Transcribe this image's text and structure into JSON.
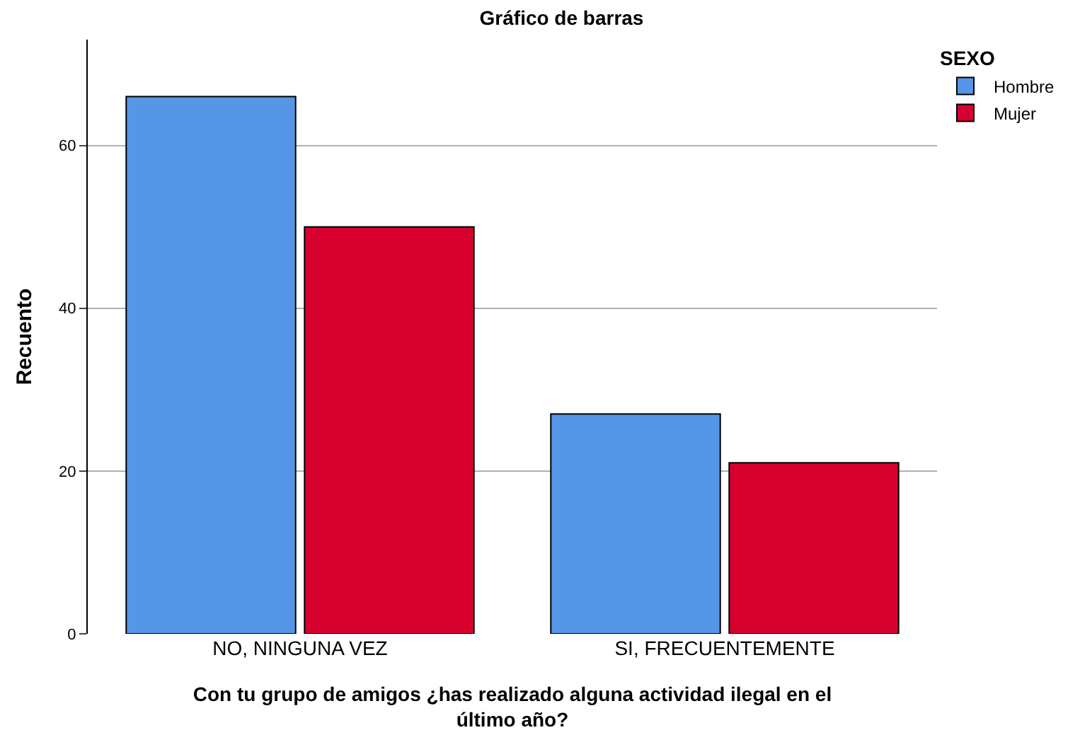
{
  "chart_data": {
    "type": "bar",
    "title": "Gráfico de barras",
    "xlabel": "Con tu grupo de amigos ¿has realizado alguna actividad ilegal en el último año?",
    "ylabel": "Recuento",
    "legend_title": "SEXO",
    "categories": [
      "NO, NINGUNA VEZ",
      "SI, FRECUENTEMENTE"
    ],
    "series": [
      {
        "name": "Hombre",
        "color": "#5596e6",
        "values": [
          66,
          27
        ]
      },
      {
        "name": "Mujer",
        "color": "#d6002f",
        "values": [
          50,
          21
        ]
      }
    ],
    "ylim": [
      0,
      73
    ],
    "yticks": [
      0,
      20,
      40,
      60
    ],
    "grid": "y",
    "legend": "top right"
  }
}
